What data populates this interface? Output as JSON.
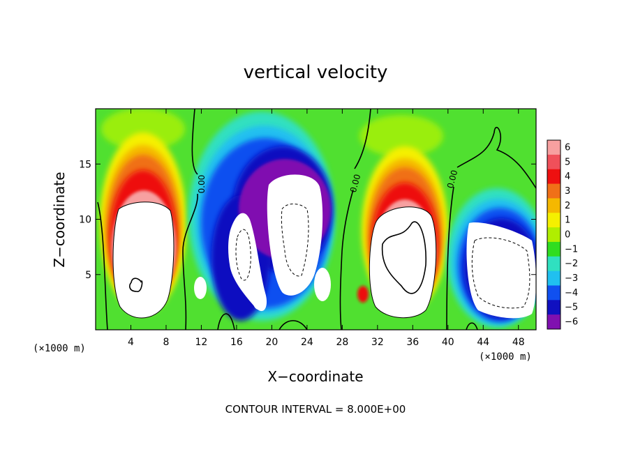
{
  "chart_data": {
    "type": "heatmap",
    "title": "vertical velocity",
    "xlabel": "X−coordinate",
    "ylabel": "Z−coordinate",
    "x_unit_label": "(×1000 m)",
    "y_unit_label": "(×1000 m)",
    "xlim": [
      0,
      50
    ],
    "ylim": [
      0,
      20
    ],
    "x_ticks": [
      4,
      8,
      12,
      16,
      20,
      24,
      28,
      32,
      36,
      40,
      44,
      48
    ],
    "x_tick_labels": [
      "4",
      "8",
      "12",
      "16",
      "20",
      "24",
      "28",
      "32",
      "36",
      "40",
      "44",
      "48"
    ],
    "y_ticks": [
      5,
      10,
      15
    ],
    "y_tick_labels": [
      "5",
      "10",
      "15"
    ],
    "contour_interval_label": "CONTOUR INTERVAL = 8.000E+00",
    "contour_labels": [
      {
        "text": "0.00",
        "x": 12.0,
        "z": 13.0
      },
      {
        "text": "0.00",
        "x": 29.5,
        "z": 13.5
      },
      {
        "text": "0.00",
        "x": 40.8,
        "z": 14.0
      }
    ],
    "colorbar": {
      "levels": [
        6,
        5,
        4,
        3,
        2,
        1,
        0,
        -1,
        -2,
        -3,
        -4,
        -5,
        -6
      ],
      "labels": [
        "6",
        "5",
        "4",
        "3",
        "2",
        "1",
        "0",
        "−1",
        "−2",
        "−3",
        "−4",
        "−5",
        "−6"
      ],
      "colors": [
        "#f7a0a0",
        "#f0505a",
        "#ee1010",
        "#f07018",
        "#f5b800",
        "#f5f000",
        "#b0ee00",
        "#30dd20",
        "#30e0c0",
        "#20c0f0",
        "#1050f0",
        "#1010c0",
        "#8010b0"
      ]
    },
    "background_color": "#50e030",
    "cells": [
      {
        "x": 4.6,
        "z": 6.5,
        "polarity": "updraft",
        "peak_label": "6"
      },
      {
        "x": 35.0,
        "z": 7.3,
        "polarity": "updraft",
        "peak_label": "6"
      },
      {
        "x": 16.7,
        "z": 6.5,
        "polarity": "downdraft",
        "peak_label": "−6"
      },
      {
        "x": 22.5,
        "z": 8.5,
        "polarity": "downdraft",
        "peak_label": "−6"
      },
      {
        "x": 45.8,
        "z": 6.5,
        "polarity": "downdraft",
        "peak_label": "−6"
      }
    ]
  }
}
